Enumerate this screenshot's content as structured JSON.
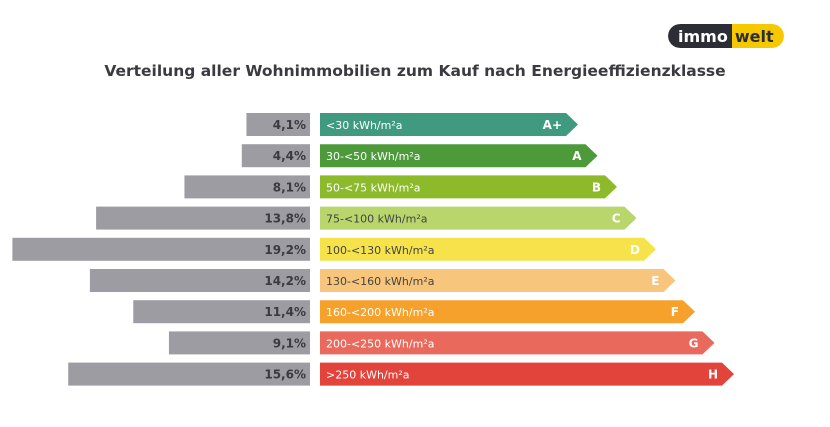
{
  "brand": {
    "logo_text_left": "immo",
    "logo_text_right": "welt"
  },
  "chart_data": {
    "type": "bar",
    "title": "Verteilung aller Wohnimmobilien zum Kauf nach Energieeffizienzklasse",
    "categories": [
      "A+",
      "A",
      "B",
      "C",
      "D",
      "E",
      "F",
      "G",
      "H"
    ],
    "ranges": [
      "<30 kWh/m²a",
      "30-<50 kWh/m²a",
      "50-<75 kWh/m²a",
      "75-<100 kWh/m²a",
      "100-<130 kWh/m²a",
      "130-<160 kWh/m²a",
      "160-<200 kWh/m²a",
      "200-<250 kWh/m²a",
      ">250 kWh/m²a"
    ],
    "values": [
      4.1,
      4.4,
      8.1,
      13.8,
      19.2,
      14.2,
      11.4,
      9.1,
      15.6
    ],
    "value_labels": [
      "4,1%",
      "4,4%",
      "8,1%",
      "13,8%",
      "19,2%",
      "14,2%",
      "11,4%",
      "9,1%",
      "15,6%"
    ],
    "unit": "%",
    "colors": [
      "#3f9a7f",
      "#4c9a3a",
      "#8cba2b",
      "#b9d66c",
      "#f6e34c",
      "#f7c57c",
      "#f5a12b",
      "#e96a5c",
      "#e2433b"
    ],
    "bar_color": "#9d9ca3"
  }
}
